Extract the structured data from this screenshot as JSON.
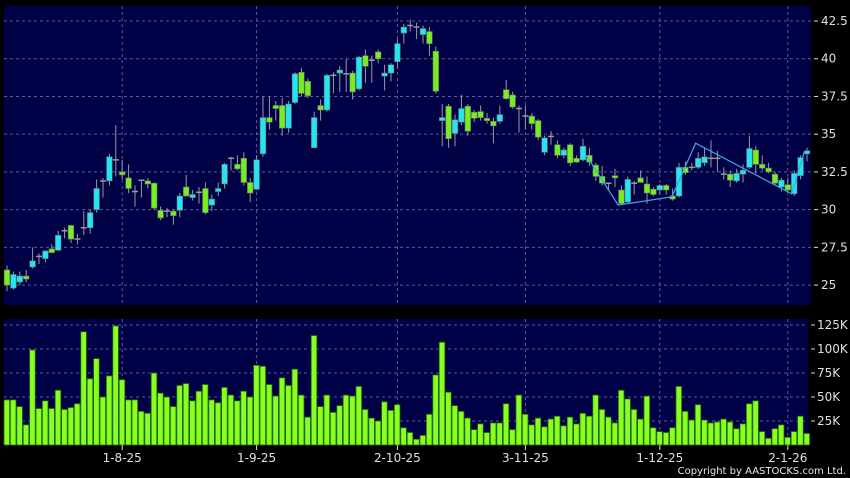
{
  "chart_data": {
    "type": "candlestick",
    "colors": {
      "background": "#000000",
      "panel": "#000046",
      "up": "#22e6f6",
      "down": "#77ee22",
      "flat": "#9a9a9a",
      "volume": "#88ff22",
      "overlay": "#3aa8e8",
      "grid": "#5a5aa0"
    },
    "price_axis": {
      "ticks": [
        "25",
        "27.5",
        "30",
        "32.5",
        "35",
        "37.5",
        "40",
        "42.5"
      ],
      "range": [
        23.7,
        43.5
      ],
      "side": "right"
    },
    "volume_axis": {
      "ticks": [
        "25K",
        "50K",
        "75K",
        "100K",
        "125K"
      ],
      "range": [
        0,
        131000
      ],
      "side": "right"
    },
    "x_ticks": [
      {
        "label": "1-8-25",
        "index": 18
      },
      {
        "label": "1-9-25",
        "index": 39
      },
      {
        "label": "2-10-25",
        "index": 61
      },
      {
        "label": "3-11-25",
        "index": 81
      },
      {
        "label": "1-12-25",
        "index": 102
      },
      {
        "label": "2-1-26",
        "index": 122
      }
    ],
    "grid": true,
    "ohlc_order": [
      "open",
      "high",
      "low",
      "close"
    ],
    "candles": [
      [
        26.0,
        26.3,
        24.6,
        25.0
      ],
      [
        24.8,
        25.9,
        24.7,
        25.7
      ],
      [
        25.2,
        25.9,
        25.0,
        25.6
      ],
      [
        25.6,
        26.0,
        25.2,
        25.4
      ],
      [
        26.2,
        27.5,
        26.1,
        26.6
      ],
      [
        26.9,
        27.1,
        26.4,
        26.9
      ],
      [
        26.75,
        27.3,
        26.5,
        27.26
      ],
      [
        27.4,
        27.7,
        27.1,
        27.15
      ],
      [
        27.3,
        28.6,
        27.3,
        28.3
      ],
      [
        28.6,
        28.8,
        28.1,
        28.6
      ],
      [
        28.95,
        29.0,
        27.8,
        28.05
      ],
      [
        28.05,
        28.4,
        27.7,
        28.05
      ],
      [
        28.8,
        29.9,
        28.3,
        28.8
      ],
      [
        28.8,
        30.0,
        28.4,
        29.8
      ],
      [
        30.0,
        32.0,
        29.8,
        31.4
      ],
      [
        31.9,
        32.1,
        30.8,
        31.9
      ],
      [
        31.9,
        33.7,
        31.6,
        33.5
      ],
      [
        33.3,
        35.6,
        32.2,
        33.3
      ],
      [
        32.5,
        33.3,
        32.0,
        32.3
      ],
      [
        32.1,
        33.0,
        31.1,
        31.4
      ],
      [
        31.2,
        31.6,
        30.2,
        31.2
      ],
      [
        31.95,
        32.0,
        30.8,
        31.95
      ],
      [
        31.9,
        32.1,
        31.4,
        31.7
      ],
      [
        31.75,
        31.8,
        30.0,
        30.1
      ],
      [
        29.95,
        30.2,
        29.3,
        29.45
      ],
      [
        29.9,
        30.1,
        29.5,
        29.9
      ],
      [
        29.9,
        30.0,
        29.0,
        29.6
      ],
      [
        29.95,
        31.1,
        29.5,
        30.9
      ],
      [
        31.5,
        32.3,
        30.9,
        30.9
      ],
      [
        30.8,
        31.3,
        30.6,
        31.0
      ],
      [
        31.15,
        31.5,
        30.4,
        31.15
      ],
      [
        31.4,
        31.8,
        29.7,
        29.8
      ],
      [
        30.3,
        31.0,
        29.9,
        30.7
      ],
      [
        31.2,
        31.8,
        30.9,
        31.4
      ],
      [
        31.7,
        33.1,
        31.4,
        33.0
      ],
      [
        33.4,
        33.5,
        32.6,
        33.4
      ],
      [
        33.0,
        33.6,
        32.6,
        32.7
      ],
      [
        33.4,
        33.8,
        31.6,
        31.8
      ],
      [
        31.8,
        32.1,
        30.5,
        31.1
      ],
      [
        31.35,
        33.6,
        31.3,
        33.3
      ],
      [
        33.7,
        37.5,
        33.5,
        36.1
      ],
      [
        36.1,
        37.5,
        35.3,
        35.8
      ],
      [
        36.9,
        37.2,
        35.9,
        36.7
      ],
      [
        36.9,
        37.4,
        34.9,
        35.4
      ],
      [
        35.4,
        37.2,
        35.1,
        37.0
      ],
      [
        37.1,
        39.1,
        37.0,
        39.0
      ],
      [
        39.1,
        39.4,
        37.5,
        37.7
      ],
      [
        38.5,
        38.7,
        37.4,
        37.55
      ],
      [
        34.1,
        36.5,
        34.1,
        36.1
      ],
      [
        36.9,
        37.3,
        35.9,
        36.6
      ],
      [
        36.6,
        39.0,
        36.5,
        38.9
      ],
      [
        38.9,
        39.1,
        37.7,
        38.9
      ],
      [
        39.05,
        39.5,
        37.8,
        39.25
      ],
      [
        39.0,
        40.0,
        37.8,
        39.0
      ],
      [
        39.05,
        39.2,
        37.3,
        37.8
      ],
      [
        38.0,
        40.2,
        37.9,
        40.1
      ],
      [
        40.2,
        40.6,
        38.4,
        39.5
      ],
      [
        39.9,
        40.2,
        38.4,
        39.9
      ],
      [
        40.45,
        40.6,
        39.7,
        40.0
      ],
      [
        38.85,
        39.6,
        37.9,
        39.05
      ],
      [
        39.05,
        39.7,
        38.5,
        39.6
      ],
      [
        39.8,
        41.3,
        39.4,
        41.0
      ],
      [
        41.7,
        42.3,
        41.0,
        42.1
      ],
      [
        42.2,
        42.6,
        41.8,
        42.2
      ],
      [
        42.1,
        42.4,
        41.3,
        42.1
      ],
      [
        41.6,
        42.2,
        41.0,
        42.0
      ],
      [
        41.8,
        42.1,
        40.2,
        41.0
      ],
      [
        40.5,
        40.8,
        37.7,
        37.85
      ],
      [
        35.9,
        37.0,
        34.2,
        36.1
      ],
      [
        36.85,
        37.0,
        34.1,
        34.7
      ],
      [
        35.05,
        36.3,
        34.2,
        35.95
      ],
      [
        35.8,
        37.6,
        35.6,
        36.7
      ],
      [
        36.85,
        37.0,
        34.9,
        35.2
      ],
      [
        36.45,
        36.6,
        35.8,
        36.05
      ],
      [
        36.5,
        36.9,
        35.9,
        36.1
      ],
      [
        36.05,
        36.4,
        35.7,
        35.9
      ],
      [
        35.85,
        36.1,
        34.4,
        35.55
      ],
      [
        35.85,
        36.9,
        35.7,
        36.3
      ],
      [
        37.95,
        38.6,
        37.3,
        37.35
      ],
      [
        37.6,
        37.8,
        36.7,
        36.8
      ],
      [
        36.7,
        36.9,
        35.1,
        36.7
      ],
      [
        36.2,
        36.9,
        35.3,
        36.2
      ],
      [
        36.2,
        36.4,
        35.3,
        35.7
      ],
      [
        35.9,
        36.0,
        34.6,
        34.8
      ],
      [
        33.8,
        34.9,
        33.6,
        34.75
      ],
      [
        34.85,
        35.2,
        34.3,
        34.85
      ],
      [
        34.3,
        34.6,
        33.4,
        33.6
      ],
      [
        33.6,
        34.1,
        33.4,
        33.95
      ],
      [
        34.3,
        34.4,
        32.9,
        33.1
      ],
      [
        33.4,
        33.6,
        33.1,
        33.15
      ],
      [
        33.3,
        34.7,
        33.2,
        34.2
      ],
      [
        33.6,
        34.1,
        32.9,
        33.15
      ],
      [
        32.95,
        33.1,
        31.9,
        32.2
      ],
      [
        32.2,
        32.9,
        31.6,
        31.75
      ],
      [
        31.75,
        31.8,
        31.3,
        31.75
      ],
      [
        32.25,
        32.7,
        31.5,
        32.1
      ],
      [
        31.3,
        31.6,
        30.3,
        30.4
      ],
      [
        30.5,
        32.2,
        30.4,
        32.0
      ],
      [
        31.75,
        31.9,
        31.0,
        31.75
      ],
      [
        32.1,
        32.6,
        31.8,
        31.8
      ],
      [
        31.7,
        32.2,
        30.4,
        31.1
      ],
      [
        31.35,
        31.5,
        30.9,
        31.0
      ],
      [
        31.3,
        31.7,
        31.0,
        31.6
      ],
      [
        31.6,
        31.7,
        31.0,
        31.3
      ],
      [
        30.9,
        31.4,
        30.6,
        30.7
      ],
      [
        30.9,
        33.1,
        30.8,
        32.8
      ],
      [
        32.8,
        33.2,
        32.3,
        32.45
      ],
      [
        32.8,
        33.1,
        32.6,
        32.8
      ],
      [
        32.8,
        33.8,
        32.7,
        33.4
      ],
      [
        33.1,
        34.1,
        32.9,
        33.5
      ],
      [
        33.4,
        34.6,
        32.8,
        33.4
      ],
      [
        33.4,
        33.9,
        32.5,
        33.4
      ],
      [
        32.35,
        32.8,
        32.0,
        32.35
      ],
      [
        32.35,
        32.6,
        31.5,
        31.95
      ],
      [
        31.9,
        32.7,
        31.8,
        32.4
      ],
      [
        32.35,
        33.0,
        31.8,
        32.6
      ],
      [
        32.8,
        34.9,
        32.7,
        34.05
      ],
      [
        33.95,
        34.2,
        32.4,
        33.0
      ],
      [
        33.0,
        33.6,
        32.6,
        32.75
      ],
      [
        32.75,
        33.1,
        32.4,
        32.5
      ],
      [
        32.35,
        32.5,
        31.6,
        31.75
      ],
      [
        31.5,
        32.1,
        31.2,
        31.95
      ],
      [
        31.65,
        32.1,
        31.2,
        31.3
      ],
      [
        31.05,
        32.6,
        30.9,
        32.4
      ],
      [
        32.25,
        33.6,
        32.0,
        33.45
      ],
      [
        33.7,
        34.1,
        33.2,
        33.9
      ]
    ],
    "volume": [
      47000,
      47000,
      40000,
      21000,
      99000,
      38000,
      46000,
      38000,
      57000,
      37000,
      39000,
      43000,
      118000,
      69000,
      90000,
      50000,
      72000,
      124000,
      68000,
      47000,
      47000,
      35000,
      33000,
      75000,
      54000,
      50000,
      40000,
      62000,
      64000,
      46000,
      56000,
      63000,
      47000,
      44000,
      60000,
      52000,
      46000,
      56000,
      50000,
      83000,
      82000,
      63000,
      51000,
      70000,
      62000,
      79000,
      52000,
      29000,
      114000,
      40000,
      52000,
      34000,
      41000,
      52000,
      51000,
      61000,
      37000,
      28000,
      25000,
      45000,
      36000,
      42000,
      18000,
      13000,
      6000,
      10000,
      32000,
      73000,
      107000,
      55000,
      41000,
      35000,
      28000,
      16000,
      22000,
      13000,
      23000,
      23000,
      43000,
      16000,
      52000,
      32000,
      21000,
      28000,
      19000,
      27000,
      30000,
      20000,
      29000,
      22000,
      33000,
      30000,
      52000,
      37000,
      29000,
      23000,
      57000,
      48000,
      37000,
      27000,
      51000,
      18000,
      14000,
      13000,
      18000,
      61000,
      35000,
      26000,
      42000,
      26000,
      23000,
      24000,
      27000,
      24000,
      17000,
      22000,
      43000,
      46000,
      14000,
      7000,
      17000,
      21000,
      8000,
      14000,
      30000,
      12000
    ],
    "overlay_line": [
      [
        90.5,
        33.6
      ],
      [
        95.5,
        30.3
      ],
      [
        103.9,
        30.85
      ],
      [
        107.6,
        34.4
      ],
      [
        122.6,
        31.05
      ],
      [
        124.6,
        33.85
      ]
    ]
  },
  "footer": {
    "copyright": "Copyright by AASTOCKS.com Ltd."
  }
}
